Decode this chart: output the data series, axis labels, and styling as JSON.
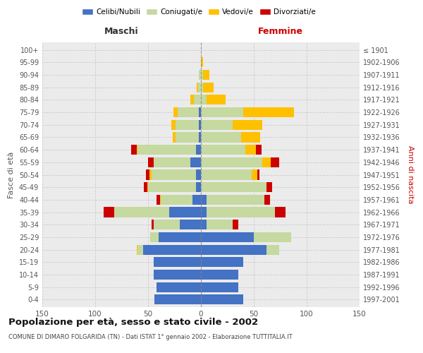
{
  "age_groups": [
    "0-4",
    "5-9",
    "10-14",
    "15-19",
    "20-24",
    "25-29",
    "30-34",
    "35-39",
    "40-44",
    "45-49",
    "50-54",
    "55-59",
    "60-64",
    "65-69",
    "70-74",
    "75-79",
    "80-84",
    "85-89",
    "90-94",
    "95-99",
    "100+"
  ],
  "birth_years": [
    "1997-2001",
    "1992-1996",
    "1987-1991",
    "1982-1986",
    "1977-1981",
    "1972-1976",
    "1967-1971",
    "1962-1966",
    "1957-1961",
    "1952-1956",
    "1947-1951",
    "1942-1946",
    "1937-1941",
    "1932-1936",
    "1927-1931",
    "1922-1926",
    "1917-1921",
    "1912-1916",
    "1907-1911",
    "1902-1906",
    "≤ 1901"
  ],
  "males_celibi": [
    44,
    42,
    45,
    45,
    55,
    40,
    20,
    30,
    8,
    5,
    5,
    10,
    5,
    2,
    2,
    2,
    0,
    0,
    0,
    0,
    0
  ],
  "males_coniugati": [
    0,
    0,
    0,
    0,
    5,
    8,
    25,
    52,
    30,
    45,
    42,
    35,
    55,
    22,
    22,
    20,
    7,
    3,
    2,
    0,
    0
  ],
  "males_vedovi": [
    0,
    0,
    0,
    0,
    1,
    0,
    0,
    0,
    1,
    1,
    2,
    0,
    1,
    3,
    4,
    4,
    3,
    1,
    0,
    0,
    0
  ],
  "males_divorziati": [
    0,
    0,
    0,
    0,
    0,
    0,
    2,
    10,
    3,
    3,
    3,
    5,
    5,
    0,
    0,
    0,
    0,
    0,
    0,
    0,
    0
  ],
  "females_nubili": [
    40,
    35,
    35,
    40,
    62,
    50,
    5,
    5,
    5,
    0,
    0,
    0,
    0,
    0,
    0,
    0,
    0,
    0,
    0,
    0,
    0
  ],
  "females_coniugate": [
    0,
    0,
    0,
    0,
    12,
    35,
    25,
    65,
    55,
    62,
    48,
    58,
    42,
    38,
    30,
    40,
    5,
    2,
    2,
    0,
    0
  ],
  "females_vedove": [
    0,
    0,
    0,
    0,
    0,
    0,
    0,
    0,
    0,
    0,
    5,
    8,
    10,
    18,
    28,
    48,
    18,
    10,
    6,
    2,
    0
  ],
  "females_divorziate": [
    0,
    0,
    0,
    0,
    0,
    0,
    5,
    10,
    5,
    5,
    2,
    8,
    5,
    0,
    0,
    0,
    0,
    0,
    0,
    0,
    0
  ],
  "color_celibi": "#4472c4",
  "color_coniugati": "#c5d9a0",
  "color_vedovi": "#ffc000",
  "color_divorziati": "#cc0000",
  "xlim": 150,
  "title": "Popolazione per età, sesso e stato civile - 2002",
  "subtitle": "COMUNE DI DIMARO FOLGARIDA (TN) - Dati ISTAT 1° gennaio 2002 - Elaborazione TUTTITALIA.IT",
  "ylabel_left": "Fasce di età",
  "ylabel_right": "Anni di nascita",
  "xlabel_left": "Maschi",
  "xlabel_right": "Femmine",
  "bg_color": "#ebebeb",
  "grid_color": "#cccccc"
}
